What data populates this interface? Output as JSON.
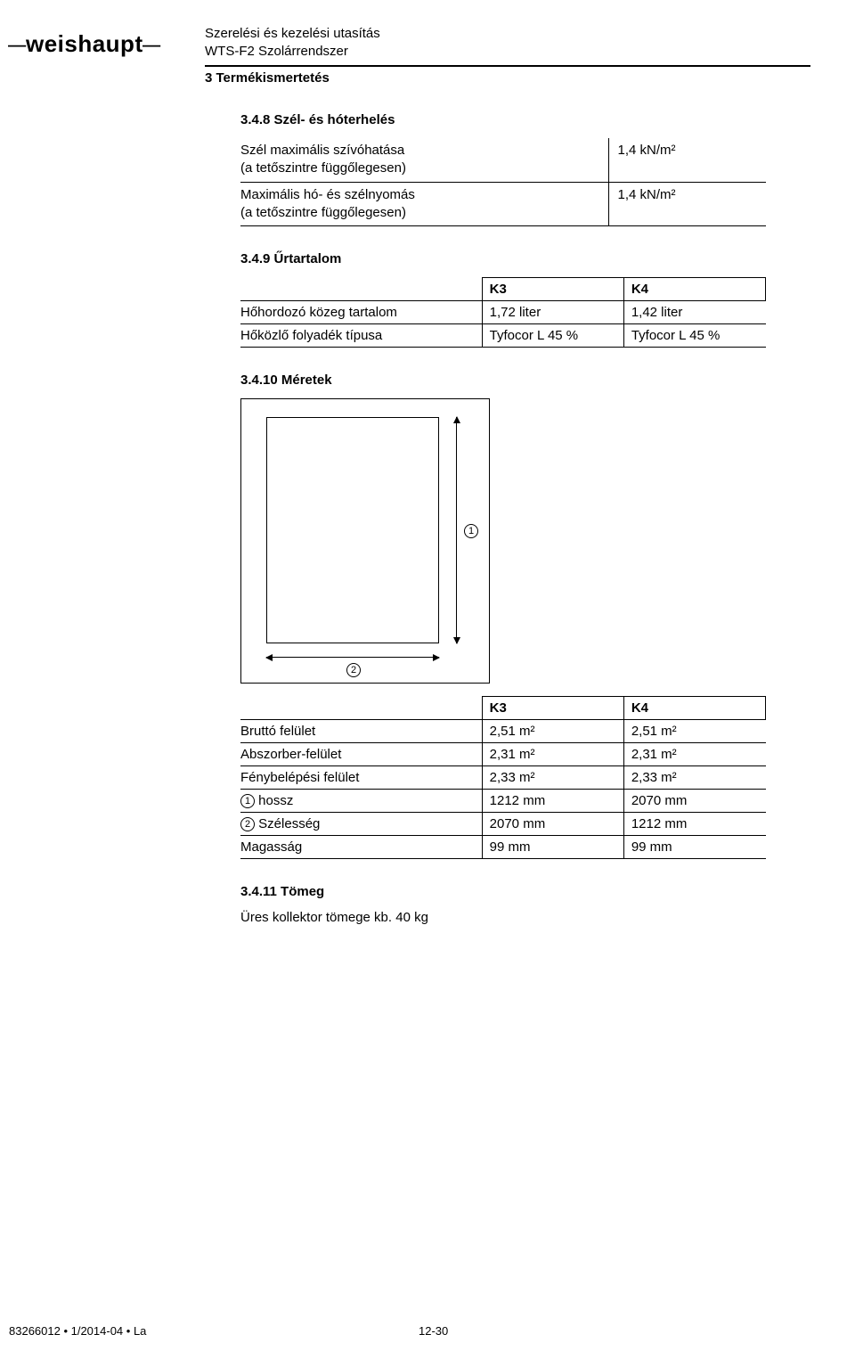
{
  "header": {
    "brand": "weishaupt",
    "line1": "Szerelési és kezelési utasítás",
    "line2": "WTS-F2 Szolárrendszer",
    "section": "3 Termékismertetés"
  },
  "s348": {
    "title": "3.4.8 Szél- és hóterhelés",
    "rows": [
      {
        "label_l1": "Szél maximális szívóhatása",
        "label_l2": "(a tetőszintre függőlegesen)",
        "value": "1,4 kN/m²"
      },
      {
        "label_l1": "Maximális hó- és szélnyomás",
        "label_l2": "(a tetőszintre függőlegesen)",
        "value": "1,4 kN/m²"
      }
    ]
  },
  "s349": {
    "title": "3.4.9 Űrtartalom",
    "col1": "K3",
    "col2": "K4",
    "rows": [
      {
        "label": "Hőhordozó közeg tartalom",
        "k3": "1,72 liter",
        "k4": "1,42 liter"
      },
      {
        "label": "Hőközlő folyadék típusa",
        "k3": "Tyfocor L 45 %",
        "k4": "Tyfocor L 45 %"
      }
    ]
  },
  "s3410": {
    "title": "3.4.10 Méretek",
    "marker1": "1",
    "marker2": "2",
    "col1": "K3",
    "col2": "K4",
    "rows": [
      {
        "label": "Bruttó felület",
        "k3": "2,51 m²",
        "k4": "2,51 m²"
      },
      {
        "label": "Abszorber-felület",
        "k3": "2,31 m²",
        "k4": "2,31 m²"
      },
      {
        "label": "Fénybelépési felület",
        "k3": "2,33 m²",
        "k4": "2,33 m²"
      },
      {
        "label_pre": "1",
        "label": " hossz",
        "k3": "1212 mm",
        "k4": "2070 mm"
      },
      {
        "label_pre": "2",
        "label": " Szélesség",
        "k3": "2070 mm",
        "k4": "1212 mm"
      },
      {
        "label": "Magasság",
        "k3": "99 mm",
        "k4": "99 mm"
      }
    ]
  },
  "s3411": {
    "title": "3.4.11 Tömeg",
    "text": "Üres kollektor tömege kb. 40 kg"
  },
  "footer": {
    "left": "83266012 • 1/2014-04 • La",
    "page": "12-30"
  }
}
